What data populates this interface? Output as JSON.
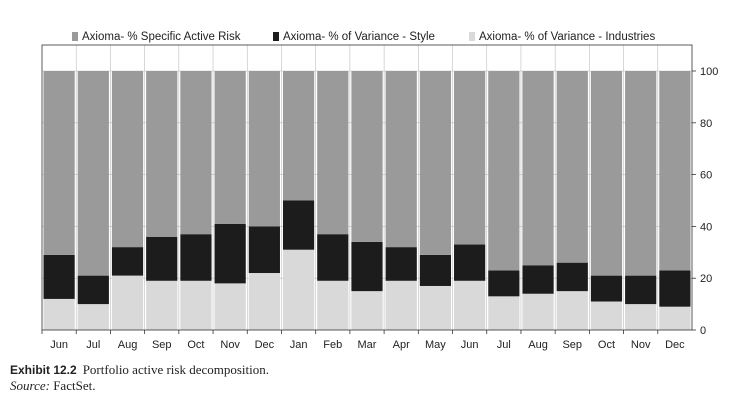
{
  "chart_data": {
    "type": "bar",
    "stacked": true,
    "categories": [
      "Jun",
      "Jul",
      "Aug",
      "Sep",
      "Oct",
      "Nov",
      "Dec",
      "Jan",
      "Feb",
      "Mar",
      "Apr",
      "May",
      "Jun",
      "Jul",
      "Aug",
      "Sep",
      "Oct",
      "Nov",
      "Dec"
    ],
    "series": [
      {
        "name": "Axioma- % of Variance - Industries",
        "color": "#d9d9d9",
        "values": [
          12,
          10,
          21,
          19,
          19,
          18,
          22,
          31,
          19,
          15,
          19,
          17,
          19,
          13,
          14,
          15,
          11,
          10,
          9
        ]
      },
      {
        "name": "Axioma- % of Variance - Style",
        "color": "#1c1c1c",
        "values": [
          17,
          11,
          11,
          17,
          18,
          23,
          18,
          19,
          18,
          19,
          13,
          12,
          14,
          10,
          11,
          11,
          10,
          11,
          14
        ]
      },
      {
        "name": "Axioma- % Specific Active Risk",
        "color": "#9a9a9a",
        "values": [
          71,
          79,
          68,
          64,
          63,
          59,
          60,
          50,
          63,
          66,
          68,
          71,
          67,
          77,
          75,
          74,
          79,
          79,
          77
        ]
      }
    ],
    "legend_order": [
      "Axioma- % Specific Active Risk",
      "Axioma- % of Variance - Style",
      "Axioma- % of Variance - Industries"
    ],
    "yticks": [
      "0",
      "20",
      "40",
      "60",
      "80",
      "100"
    ],
    "ylim": [
      0,
      100
    ],
    "y_axis_side": "right",
    "grid": true,
    "legend_position": "top"
  },
  "caption": {
    "exhibit": "Exhibit 12.2",
    "title": "Portfolio active risk decomposition.",
    "source_label": "Source:",
    "source": "FactSet."
  }
}
